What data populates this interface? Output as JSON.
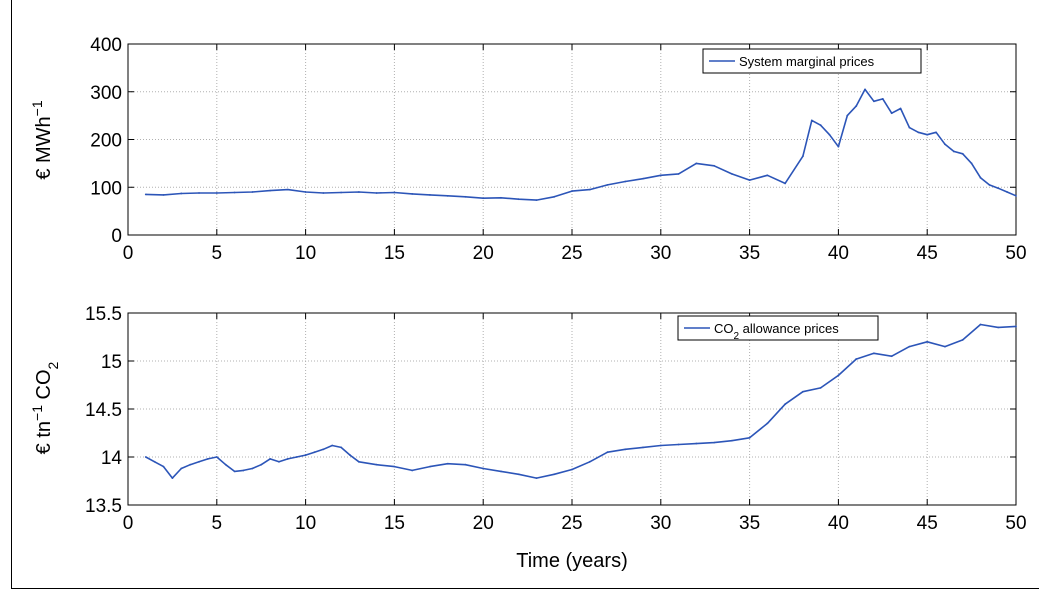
{
  "chart_data": [
    {
      "type": "line",
      "title": "",
      "xlabel": "",
      "ylabel": "€ MWh⁻¹",
      "ylabel_parts": {
        "main": "€ MWh",
        "superscript": "−1"
      },
      "xlim": [
        0,
        50
      ],
      "ylim": [
        0,
        400
      ],
      "xticks": [
        0,
        5,
        10,
        15,
        20,
        25,
        30,
        35,
        40,
        45,
        50
      ],
      "yticks": [
        0,
        100,
        200,
        300,
        400
      ],
      "grid": true,
      "legend_position": "top-right",
      "series": [
        {
          "name": "System marginal prices",
          "color": "#2c55b8",
          "x": [
            1,
            2,
            3,
            4,
            5,
            6,
            7,
            8,
            9,
            10,
            11,
            12,
            13,
            14,
            15,
            16,
            17,
            18,
            19,
            20,
            21,
            22,
            23,
            24,
            25,
            26,
            27,
            28,
            29,
            30,
            31,
            32,
            33,
            34,
            35,
            36,
            37,
            38,
            38.5,
            39,
            39.5,
            40,
            40.5,
            41,
            41.5,
            42,
            42.5,
            43,
            43.5,
            44,
            44.5,
            45,
            45.5,
            46,
            46.5,
            47,
            47.5,
            48,
            48.5,
            49,
            49.5,
            50
          ],
          "y": [
            85,
            84,
            87,
            88,
            88,
            89,
            90,
            93,
            95,
            90,
            88,
            89,
            90,
            88,
            89,
            86,
            84,
            82,
            80,
            77,
            78,
            75,
            73,
            80,
            92,
            95,
            105,
            112,
            118,
            125,
            128,
            150,
            145,
            128,
            115,
            125,
            108,
            165,
            240,
            230,
            210,
            185,
            250,
            270,
            305,
            280,
            285,
            255,
            265,
            225,
            215,
            210,
            215,
            190,
            175,
            170,
            150,
            120,
            105,
            98,
            90,
            82
          ]
        }
      ]
    },
    {
      "type": "line",
      "title": "",
      "xlabel": "Time (years)",
      "ylabel": "€ tn⁻¹ CO₂",
      "ylabel_parts": {
        "main": "€ tn",
        "superscript": "−1",
        "tail": " CO",
        "subscript": "2"
      },
      "xlim": [
        0,
        50
      ],
      "ylim": [
        13.5,
        15.5
      ],
      "xticks": [
        0,
        5,
        10,
        15,
        20,
        25,
        30,
        35,
        40,
        45,
        50
      ],
      "yticks": [
        13.5,
        14,
        14.5,
        15,
        15.5
      ],
      "ytick_labels": [
        "13.5",
        "14",
        "14.5",
        "15",
        "15.5"
      ],
      "grid": true,
      "legend_position": "top-right",
      "series": [
        {
          "name": "CO₂ allowance prices",
          "name_parts": {
            "main": "CO",
            "subscript": "2",
            "tail": " allowance prices"
          },
          "color": "#2c55b8",
          "x": [
            1,
            1.5,
            2,
            2.5,
            3,
            3.5,
            4,
            4.5,
            5,
            5.5,
            6,
            6.5,
            7,
            7.5,
            8,
            8.5,
            9,
            9.5,
            10,
            10.5,
            11,
            11.5,
            12,
            12.5,
            13,
            14,
            15,
            16,
            17,
            18,
            19,
            20,
            21,
            22,
            23,
            24,
            25,
            26,
            27,
            28,
            29,
            30,
            31,
            32,
            33,
            34,
            35,
            36,
            37,
            38,
            39,
            40,
            41,
            42,
            43,
            44,
            45,
            46,
            47,
            48,
            49,
            50
          ],
          "y": [
            14.0,
            13.95,
            13.9,
            13.78,
            13.88,
            13.92,
            13.95,
            13.98,
            14.0,
            13.92,
            13.85,
            13.86,
            13.88,
            13.92,
            13.98,
            13.95,
            13.98,
            14.0,
            14.02,
            14.05,
            14.08,
            14.12,
            14.1,
            14.02,
            13.95,
            13.92,
            13.9,
            13.86,
            13.9,
            13.93,
            13.92,
            13.88,
            13.85,
            13.82,
            13.78,
            13.82,
            13.87,
            13.95,
            14.05,
            14.08,
            14.1,
            14.12,
            14.13,
            14.14,
            14.15,
            14.17,
            14.2,
            14.35,
            14.55,
            14.68,
            14.72,
            14.85,
            15.02,
            15.08,
            15.05,
            15.15,
            15.2,
            15.15,
            15.22,
            15.38,
            15.35,
            15.36
          ]
        }
      ]
    }
  ]
}
